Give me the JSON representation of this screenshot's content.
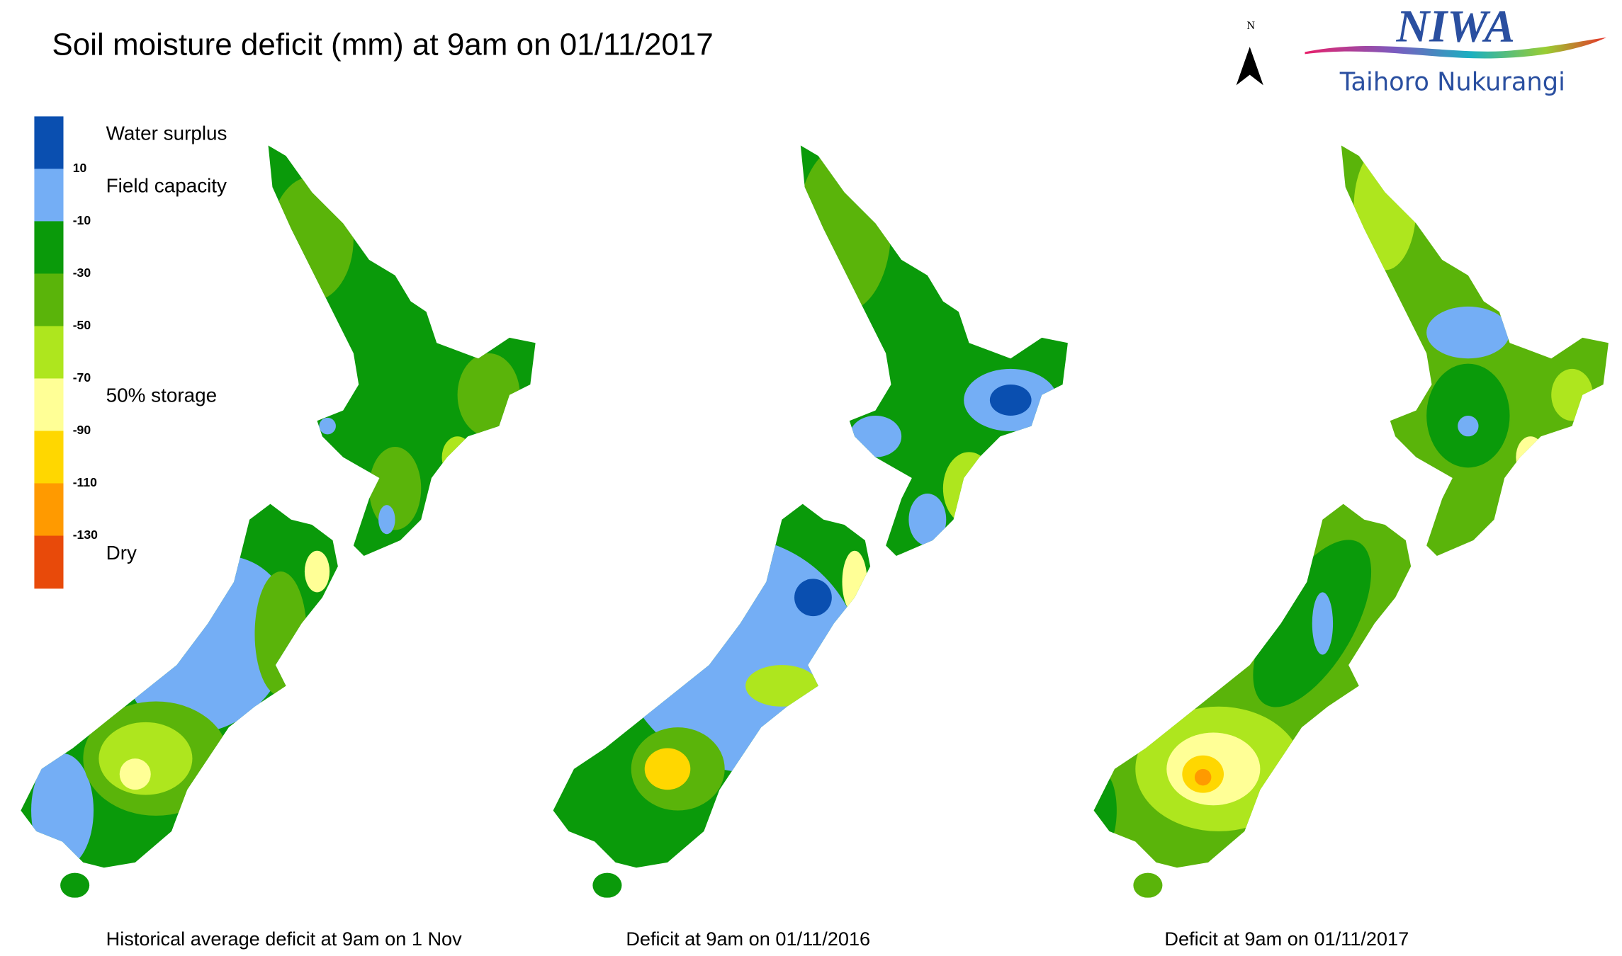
{
  "title": "Soil moisture deficit (mm) at  9am on 01/11/2017",
  "north": "N",
  "logo": {
    "name": "NIWA",
    "subtitle": "Taihoro Nukurangi"
  },
  "legend": {
    "colors": [
      "#0a4fb0",
      "#74aef5",
      "#0a9a0a",
      "#5ab40a",
      "#aee61e",
      "#ffff96",
      "#ffd700",
      "#ff9a00",
      "#e84a0a"
    ],
    "ticks": [
      10,
      -10,
      -30,
      -50,
      -70,
      -90,
      -110,
      -130
    ],
    "labels": [
      {
        "text": "Water surplus",
        "at": 0
      },
      {
        "text": "Field capacity",
        "at": 1
      },
      {
        "text": "50% storage",
        "at": 5
      },
      {
        "text": "Dry",
        "at": 8
      }
    ]
  },
  "maps": [
    {
      "caption": "Historical average deficit at  9am on 1 Nov"
    },
    {
      "caption": "Deficit at  9am on 01/11/2016"
    },
    {
      "caption": "Deficit at  9am on 01/11/2017"
    }
  ]
}
